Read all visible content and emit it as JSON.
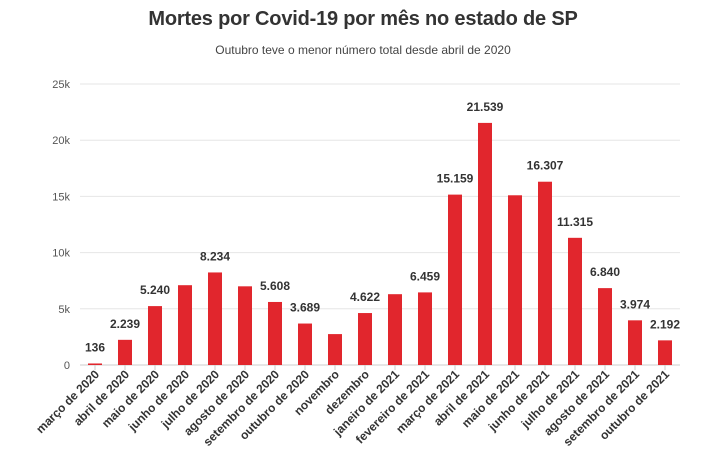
{
  "chart_data": {
    "type": "bar",
    "title": "Mortes por Covid-19 por mês no estado de SP",
    "subtitle": "Outubro teve o menor número total desde abril de 2020",
    "xlabel": "",
    "ylabel": "",
    "ylim": [
      0,
      25000
    ],
    "yticks": [
      0,
      5000,
      10000,
      15000,
      20000,
      25000
    ],
    "ytick_labels": [
      "0",
      "5k",
      "10k",
      "15k",
      "20k",
      "25k"
    ],
    "grid": true,
    "bar_color": "#e1262d",
    "categories": [
      "março de 2020",
      "abril de 2020",
      "maio de 2020",
      "junho de 2020",
      "julho de 2020",
      "agosto de 2020",
      "setembro de 2020",
      "outubro de 2020",
      "novembro",
      "dezembro",
      "janeiro de 2021",
      "fevereiro de 2021",
      "março de 2021",
      "abril de 2021",
      "maio de 2021",
      "junho de 2021",
      "julho de 2021",
      "agosto de 2021",
      "setembro de 2021",
      "outubro de 2021"
    ],
    "values": [
      136,
      2239,
      5240,
      7100,
      8234,
      7000,
      5608,
      3689,
      2750,
      4622,
      6300,
      6459,
      15159,
      21539,
      15100,
      16307,
      11315,
      6840,
      3974,
      2192
    ],
    "data_labels": [
      "136",
      "2.239",
      "5.240",
      "",
      "8.234",
      "",
      "5.608",
      "3.689",
      "",
      "4.622",
      "",
      "6.459",
      "15.159",
      "21.539",
      "",
      "16.307",
      "11.315",
      "6.840",
      "3.974",
      "2.192"
    ]
  }
}
